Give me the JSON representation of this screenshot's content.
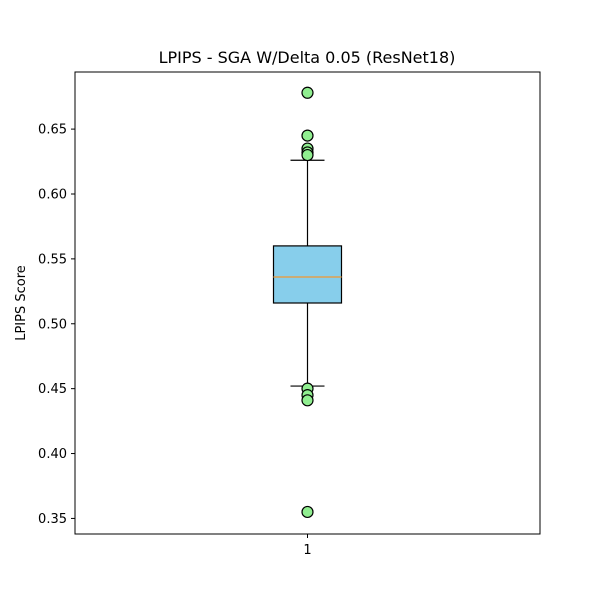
{
  "chart_data": {
    "type": "box",
    "title": "LPIPS - SGA W/Delta 0.05 (ResNet18)",
    "xlabel": "",
    "ylabel": "LPIPS Score",
    "categories": [
      "1"
    ],
    "ylim": [
      0.338,
      0.694
    ],
    "yticks": [
      0.35,
      0.4,
      0.45,
      0.5,
      0.55,
      0.6,
      0.65
    ],
    "ytick_labels": [
      "0.35",
      "0.40",
      "0.45",
      "0.50",
      "0.55",
      "0.60",
      "0.65"
    ],
    "grid": false,
    "box": {
      "q1": 0.516,
      "median": 0.536,
      "q3": 0.56,
      "whisker_low": 0.452,
      "whisker_high": 0.626
    },
    "outliers": [
      0.678,
      0.645,
      0.635,
      0.632,
      0.63,
      0.45,
      0.445,
      0.441,
      0.355
    ],
    "colors": {
      "box_fill": "#87ceeb",
      "median_line": "#e0a050",
      "outlier_fill": "#90ee90",
      "edge": "#000000"
    }
  }
}
